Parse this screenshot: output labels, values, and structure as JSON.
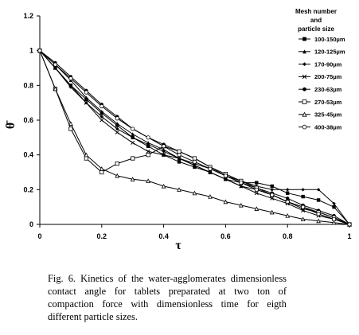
{
  "caption": "Fig.   6.   Kinetics of the water-agglomerates dimensionless contact angle for tablets preparated at two ton of compaction force with dimensionless time for eigth different particle sizes.",
  "chart_data": {
    "type": "line",
    "xlabel": "τ",
    "ylabel": "θ̄",
    "xlim": [
      0,
      1
    ],
    "ylim": [
      0,
      1.2
    ],
    "xticks": [
      "0",
      "0.2",
      "0.4",
      "0.6",
      "0.8",
      "1"
    ],
    "yticks": [
      "0",
      "0.2",
      "0.4",
      "0.6",
      "0.8",
      "1",
      "1.2"
    ],
    "grid": false,
    "legend_title": [
      "Mesh number",
      "and",
      "particle size"
    ],
    "legend_position": "top-right",
    "series": [
      {
        "name": "100-150µm",
        "marker": "square-filled",
        "x": [
          0,
          0.05,
          0.1,
          0.15,
          0.2,
          0.25,
          0.3,
          0.35,
          0.4,
          0.45,
          0.5,
          0.55,
          0.6,
          0.65,
          0.7,
          0.75,
          0.8,
          0.85,
          0.9,
          0.95,
          1
        ],
        "y": [
          1,
          0.9,
          0.8,
          0.72,
          0.64,
          0.57,
          0.5,
          0.45,
          0.4,
          0.36,
          0.33,
          0.3,
          0.26,
          0.24,
          0.24,
          0.22,
          0.18,
          0.16,
          0.14,
          0.1,
          0
        ]
      },
      {
        "name": "120-125µm",
        "marker": "triangle-filled",
        "x": [
          0,
          0.05,
          0.1,
          0.15,
          0.2,
          0.25,
          0.3,
          0.35,
          0.4,
          0.45,
          0.5,
          0.55,
          0.6,
          0.65,
          0.7,
          0.75,
          0.8,
          0.85,
          0.9,
          0.95,
          1
        ],
        "y": [
          1,
          0.92,
          0.83,
          0.73,
          0.65,
          0.58,
          0.52,
          0.47,
          0.43,
          0.38,
          0.34,
          0.3,
          0.26,
          0.22,
          0.2,
          0.17,
          0.13,
          0.09,
          0.07,
          0.04,
          0
        ]
      },
      {
        "name": "170-90µm",
        "marker": "diamond-filled",
        "x": [
          0,
          0.05,
          0.1,
          0.15,
          0.2,
          0.25,
          0.3,
          0.35,
          0.4,
          0.45,
          0.5,
          0.55,
          0.6,
          0.65,
          0.7,
          0.75,
          0.8,
          0.85,
          0.9,
          0.95,
          1
        ],
        "y": [
          1,
          0.9,
          0.79,
          0.7,
          0.62,
          0.55,
          0.5,
          0.46,
          0.42,
          0.38,
          0.35,
          0.32,
          0.28,
          0.25,
          0.22,
          0.2,
          0.2,
          0.2,
          0.2,
          0.12,
          0
        ]
      },
      {
        "name": "200-75µm",
        "marker": "x",
        "x": [
          0,
          0.05,
          0.1,
          0.15,
          0.2,
          0.25,
          0.3,
          0.35,
          0.4,
          0.45,
          0.5,
          0.55,
          0.6,
          0.65,
          0.7,
          0.75,
          0.8,
          0.85,
          0.9,
          0.95,
          1
        ],
        "y": [
          1,
          0.9,
          0.8,
          0.7,
          0.6,
          0.53,
          0.47,
          0.42,
          0.4,
          0.38,
          0.34,
          0.3,
          0.26,
          0.22,
          0.18,
          0.15,
          0.12,
          0.08,
          0.05,
          0.03,
          0
        ]
      },
      {
        "name": "230-63µm",
        "marker": "circle-filled",
        "x": [
          0,
          0.05,
          0.1,
          0.15,
          0.2,
          0.25,
          0.3,
          0.35,
          0.4,
          0.45,
          0.5,
          0.55,
          0.6,
          0.65,
          0.7,
          0.75,
          0.8,
          0.85,
          0.9,
          0.95,
          1
        ],
        "y": [
          1,
          0.93,
          0.85,
          0.77,
          0.69,
          0.62,
          0.55,
          0.5,
          0.46,
          0.42,
          0.38,
          0.33,
          0.28,
          0.24,
          0.21,
          0.18,
          0.15,
          0.11,
          0.08,
          0.05,
          0
        ]
      },
      {
        "name": "270-53µm",
        "marker": "square-open",
        "x": [
          0,
          0.05,
          0.1,
          0.15,
          0.2,
          0.25,
          0.3,
          0.35,
          0.4,
          0.45,
          0.5,
          0.55,
          0.6,
          0.65,
          0.7,
          0.75,
          0.8,
          0.85,
          0.9,
          0.95,
          1
        ],
        "y": [
          1,
          0.78,
          0.55,
          0.38,
          0.3,
          0.35,
          0.38,
          0.4,
          0.45,
          0.42,
          0.38,
          0.33,
          0.29,
          0.25,
          0.21,
          0.17,
          0.13,
          0.1,
          0.07,
          0.04,
          0
        ]
      },
      {
        "name": "325-45µm",
        "marker": "triangle-open",
        "x": [
          0,
          0.05,
          0.1,
          0.15,
          0.2,
          0.25,
          0.3,
          0.35,
          0.4,
          0.45,
          0.5,
          0.55,
          0.6,
          0.65,
          0.7,
          0.75,
          0.8,
          0.85,
          0.9,
          0.95,
          1
        ],
        "y": [
          1,
          0.78,
          0.58,
          0.4,
          0.32,
          0.28,
          0.26,
          0.25,
          0.22,
          0.2,
          0.18,
          0.16,
          0.13,
          0.11,
          0.09,
          0.07,
          0.05,
          0.03,
          0.02,
          0.01,
          0
        ]
      },
      {
        "name": "400-38µm",
        "marker": "circle-open",
        "x": [
          0,
          0.05,
          0.1,
          0.15,
          0.2,
          0.25,
          0.3,
          0.35,
          0.4,
          0.45,
          0.5,
          0.55,
          0.6,
          0.65,
          0.7,
          0.75,
          0.8,
          0.85,
          0.9,
          0.95,
          1
        ],
        "y": [
          1,
          0.92,
          0.84,
          0.76,
          0.68,
          0.61,
          0.55,
          0.5,
          0.45,
          0.4,
          0.36,
          0.32,
          0.28,
          0.24,
          0.2,
          0.17,
          0.13,
          0.1,
          0.06,
          0.03,
          0
        ]
      }
    ]
  }
}
